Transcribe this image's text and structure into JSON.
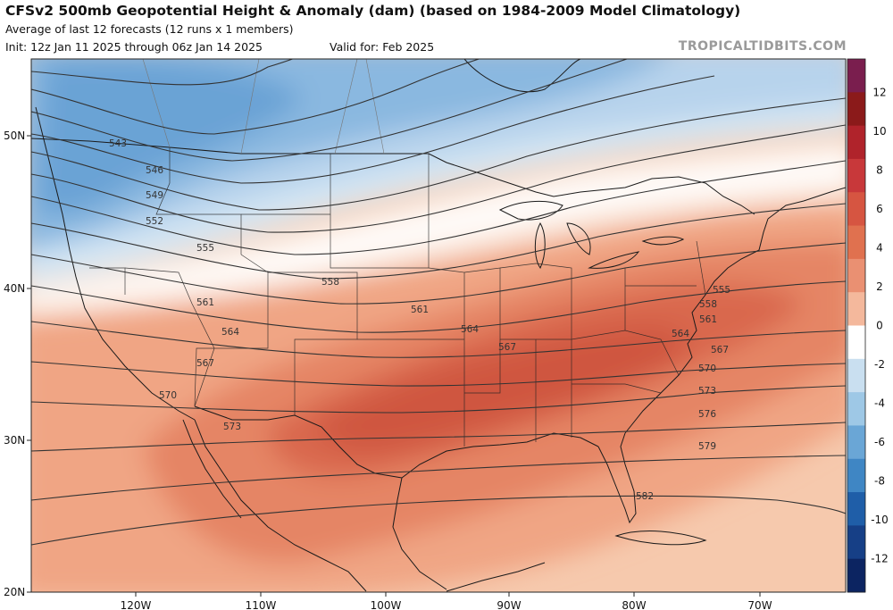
{
  "header": {
    "title": "CFSv2 500mb Geopotential Height & Anomaly (dam) (based on 1984-2009 Model Climatology)",
    "subtitle": "Average of last 12 forecasts (12 runs x 1 members)",
    "init": "Init: 12z Jan 11 2025 through 06z Jan 14 2025",
    "valid": "Valid for: Feb 2025",
    "brand": "TROPICALTIDBITS.COM"
  },
  "axes": {
    "lat_labels": [
      "50N",
      "40N",
      "30N",
      "20N"
    ],
    "lon_labels": [
      "120W",
      "110W",
      "100W",
      "90W",
      "80W",
      "70W"
    ]
  },
  "colorbar": {
    "ticks": [
      "12",
      "10",
      "8",
      "6",
      "4",
      "2",
      "0",
      "-2",
      "-4",
      "-6",
      "-8",
      "-10",
      "-12"
    ],
    "colors": [
      "#7a1e4e",
      "#8b1a1a",
      "#b0232b",
      "#c8383a",
      "#d65541",
      "#e0714f",
      "#ea9072",
      "#f4b89c",
      "#ffffff",
      "#c9dff0",
      "#9ec8e6",
      "#6aa6d6",
      "#3f86c4",
      "#1f5ea8",
      "#163f86",
      "#0c2461"
    ]
  },
  "contours": [
    {
      "label": "543"
    },
    {
      "label": "546"
    },
    {
      "label": "549"
    },
    {
      "label": "552"
    },
    {
      "label": "555"
    },
    {
      "label": "558"
    },
    {
      "label": "561"
    },
    {
      "label": "564"
    },
    {
      "label": "567"
    },
    {
      "label": "570"
    },
    {
      "label": "573"
    },
    {
      "label": "576"
    },
    {
      "label": "579"
    },
    {
      "label": "582"
    }
  ]
}
